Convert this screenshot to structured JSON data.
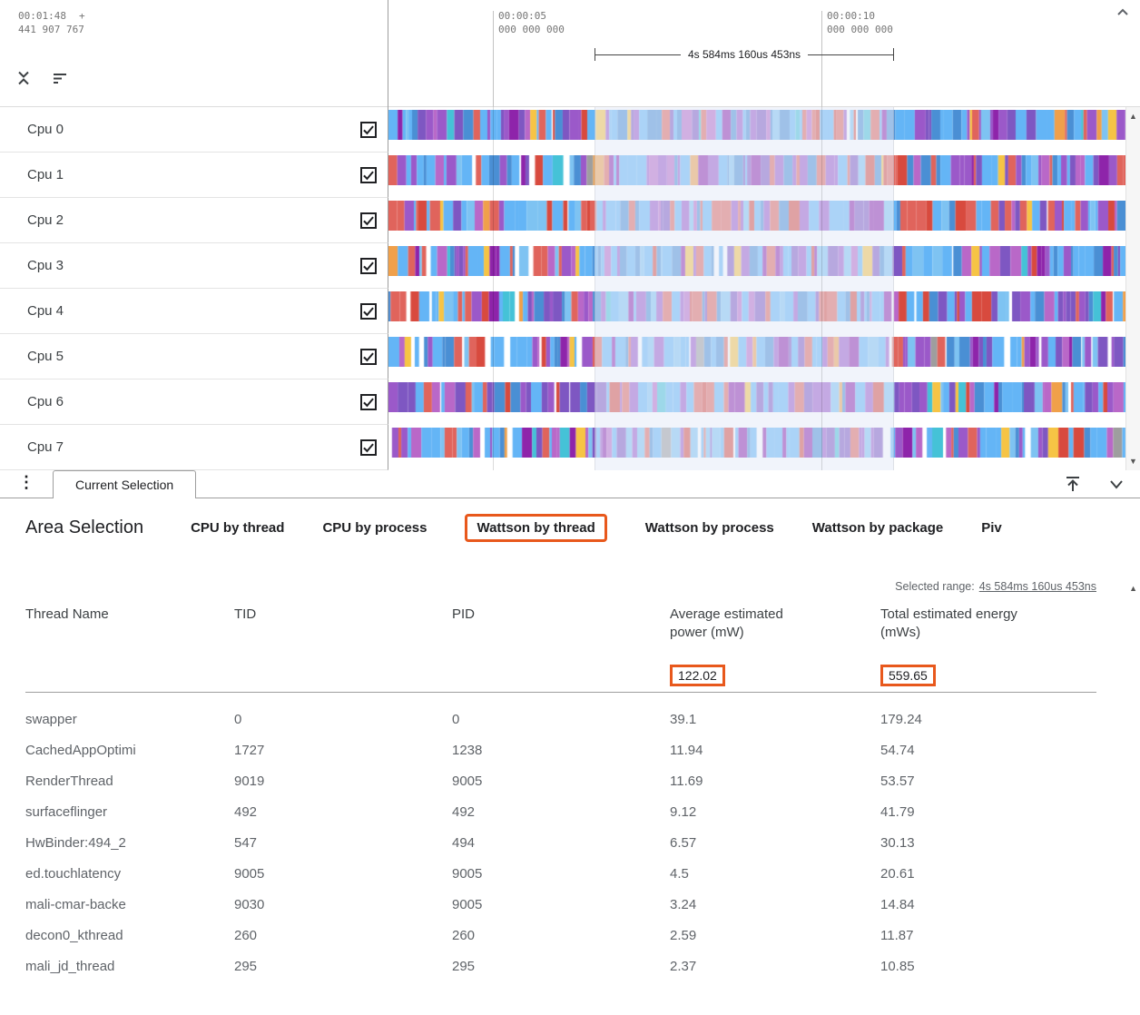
{
  "colors": {
    "accent_orange": "#e8581c"
  },
  "icons": {
    "more_vert": "⋮",
    "scroll_up": "▲",
    "scroll_down": "▼"
  },
  "timeline": {
    "origin_time": "00:01:48",
    "origin_plus": "+",
    "origin_sub": "441 907 767",
    "ticks": [
      {
        "time": "00:00:05",
        "sub": "000 000 000"
      },
      {
        "time": "00:00:10",
        "sub": "000 000 000"
      }
    ],
    "range_label": "4s 584ms 160us 453ns"
  },
  "tracks": {
    "cpus": [
      {
        "name": "Cpu 0",
        "checked": true
      },
      {
        "name": "Cpu 1",
        "checked": true
      },
      {
        "name": "Cpu 2",
        "checked": true
      },
      {
        "name": "Cpu 3",
        "checked": true
      },
      {
        "name": "Cpu 4",
        "checked": true
      },
      {
        "name": "Cpu 5",
        "checked": true
      },
      {
        "name": "Cpu 6",
        "checked": true
      },
      {
        "name": "Cpu 7",
        "checked": true
      }
    ],
    "palette": [
      {
        "c": "#64b5f6",
        "w": 0.26
      },
      {
        "c": "#4a8fd4",
        "w": 0.1
      },
      {
        "c": "#7ec3f2",
        "w": 0.06
      },
      {
        "c": "#9b59c9",
        "w": 0.14
      },
      {
        "c": "#7e57c2",
        "w": 0.1
      },
      {
        "c": "#b968c8",
        "w": 0.08
      },
      {
        "c": "#8e24aa",
        "w": 0.05
      },
      {
        "c": "#e0645c",
        "w": 0.1
      },
      {
        "c": "#d84a3e",
        "w": 0.04
      },
      {
        "c": "#f0a04a",
        "w": 0.02
      },
      {
        "c": "#f6c445",
        "w": 0.02
      },
      {
        "c": "#45c2d7",
        "w": 0.02
      },
      {
        "c": "#9e9e9e",
        "w": 0.01
      }
    ]
  },
  "tabstrip": {
    "current_tab": "Current Selection"
  },
  "detail": {
    "title": "Area Selection",
    "tabs": [
      {
        "label": "CPU by thread",
        "active": false
      },
      {
        "label": "CPU by process",
        "active": false
      },
      {
        "label": "Wattson by thread",
        "active": true
      },
      {
        "label": "Wattson by process",
        "active": false
      },
      {
        "label": "Wattson by package",
        "active": false
      },
      {
        "label": "Piv",
        "active": false
      }
    ],
    "selected_range": {
      "label": "Selected range:",
      "value": "4s 584ms 160us 453ns"
    },
    "table": {
      "columns": [
        "Thread Name",
        "TID",
        "PID",
        "Average estimated power (mW)",
        "Total estimated energy (mWs)"
      ],
      "summary": {
        "avg_power": "122.02",
        "total_energy": "559.65"
      },
      "rows": [
        [
          "swapper",
          "0",
          "0",
          "39.1",
          "179.24"
        ],
        [
          "CachedAppOptimi",
          "1727",
          "1238",
          "11.94",
          "54.74"
        ],
        [
          "RenderThread",
          "9019",
          "9005",
          "11.69",
          "53.57"
        ],
        [
          "surfaceflinger",
          "492",
          "492",
          "9.12",
          "41.79"
        ],
        [
          "HwBinder:494_2",
          "547",
          "494",
          "6.57",
          "30.13"
        ],
        [
          "ed.touchlatency",
          "9005",
          "9005",
          "4.5",
          "20.61"
        ],
        [
          "mali-cmar-backe",
          "9030",
          "9005",
          "3.24",
          "14.84"
        ],
        [
          "decon0_kthread",
          "260",
          "260",
          "2.59",
          "11.87"
        ],
        [
          "mali_jd_thread",
          "295",
          "295",
          "2.37",
          "10.85"
        ]
      ]
    }
  }
}
